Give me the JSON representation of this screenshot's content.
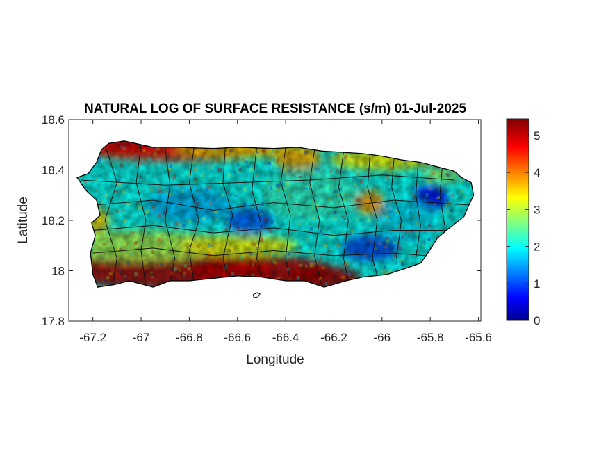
{
  "chart_data": {
    "type": "heatmap",
    "title": "NATURAL LOG OF SURFACE RESISTANCE (s/m) 01-Jul-2025",
    "xlabel": "Longitude",
    "ylabel": "Latitude",
    "xlim": [
      -67.3,
      -65.59
    ],
    "ylim": [
      17.8,
      18.6
    ],
    "xticks": [
      -67.2,
      -67,
      -66.8,
      -66.6,
      -66.4,
      -66.2,
      -66,
      -65.8,
      -65.6
    ],
    "xtick_labels": [
      "-67.2",
      "-67",
      "-66.8",
      "-66.6",
      "-66.4",
      "-66.2",
      "-66",
      "-65.8",
      "-65.6"
    ],
    "yticks": [
      17.8,
      18,
      18.2,
      18.4,
      18.6
    ],
    "ytick_labels": [
      "17.8",
      "18",
      "18.2",
      "18.4",
      "18.6"
    ],
    "colorbar": {
      "colormap": "jet",
      "clim": [
        0,
        5.45
      ],
      "ticks": [
        0,
        1,
        2,
        3,
        4,
        5
      ],
      "tick_labels": [
        "0",
        "1",
        "2",
        "3",
        "4",
        "5"
      ]
    },
    "region": "Puerto Rico",
    "grid": false,
    "legend": "none",
    "typical_value_range": [
      0.5,
      5.4
    ],
    "regional_pattern": [
      {
        "area": "north coast",
        "approx_value": 4.5
      },
      {
        "area": "south coast",
        "approx_value": 5.2
      },
      {
        "area": "central interior",
        "approx_value": 2.0
      },
      {
        "area": "El Yunque (northeast)",
        "approx_value": 0.8
      },
      {
        "area": "southeast highlands",
        "approx_value": 1.2
      }
    ]
  }
}
